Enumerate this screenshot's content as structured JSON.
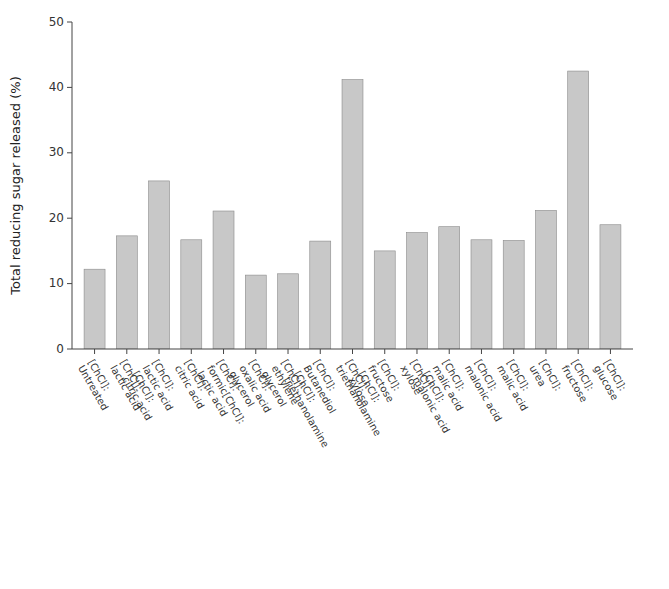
{
  "chart_data": {
    "type": "bar",
    "categories": [
      "[ChCl]:\nUntreated",
      "[ChCl]:\nlactic acid",
      "[ChCl]:\nlactic acid\n[ChCl]:\ncitric acid",
      "[ChCl]:\ncitric acid",
      "[ChCl]:\nformic[ChCl]:\nlactic acid",
      "[ChCl]:\noxalic acid\nglycerol",
      "[ChCl]:\nethylene\nglycerol",
      "[ChCl]:\nButanediol\n[ChCl]:\ntriethanolamine",
      "[ChCl]:\ntriethanolamine",
      "[ChCl]:\nfructose\n[ChCl]:\nxylose",
      "[ChCl]:\nxylose",
      "[ChCl]:\nmalic acid\n[ChCl]:\nmalonic acid",
      "[ChCl]:\nmalonic acid",
      "[ChCl]:\nmalic acid",
      "[ChCl]:\nurea",
      "[ChCl]:\nfructose",
      "[ChCl]:\nglucose"
    ],
    "values": [
      12.2,
      17.3,
      25.7,
      16.7,
      21.1,
      11.3,
      11.5,
      16.5,
      41.2,
      15.0,
      17.8,
      18.7,
      16.7,
      16.6,
      21.2,
      42.5,
      19.0
    ],
    "color": "#c8c8c8",
    "ylabel": "Total reducing sugar released (%)",
    "ylim": [
      0,
      50
    ],
    "yticks": [
      0,
      10,
      20,
      30,
      40,
      50
    ],
    "grid": false
  }
}
